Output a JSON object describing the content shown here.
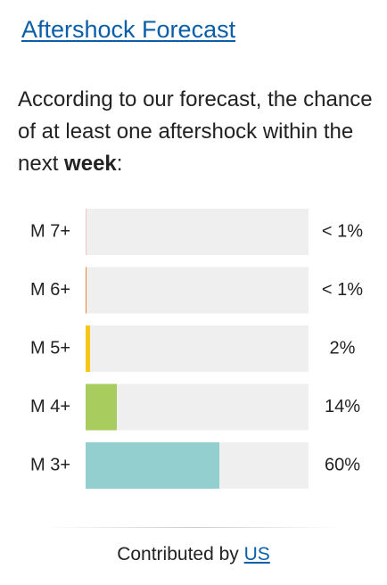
{
  "header": {
    "title": "Aftershock Forecast"
  },
  "intro": {
    "text": "According to our forecast, the chance of at least one aftershock within the next",
    "emphasis": "week",
    "end": ":"
  },
  "chart_data": {
    "type": "bar",
    "orientation": "horizontal",
    "categories": [
      "M 7+",
      "M 6+",
      "M 5+",
      "M 4+",
      "M 3+"
    ],
    "values": [
      0.1,
      0.4,
      2,
      14,
      60
    ],
    "value_labels": [
      "< 1%",
      "< 1%",
      "2%",
      "14%",
      "60%"
    ],
    "colors": [
      "#d9534f",
      "#e8872c",
      "#f5c518",
      "#a9cc5f",
      "#93cfcf"
    ],
    "xlim": [
      0,
      100
    ]
  },
  "footer": {
    "text": "Contributed by",
    "link": "US"
  }
}
